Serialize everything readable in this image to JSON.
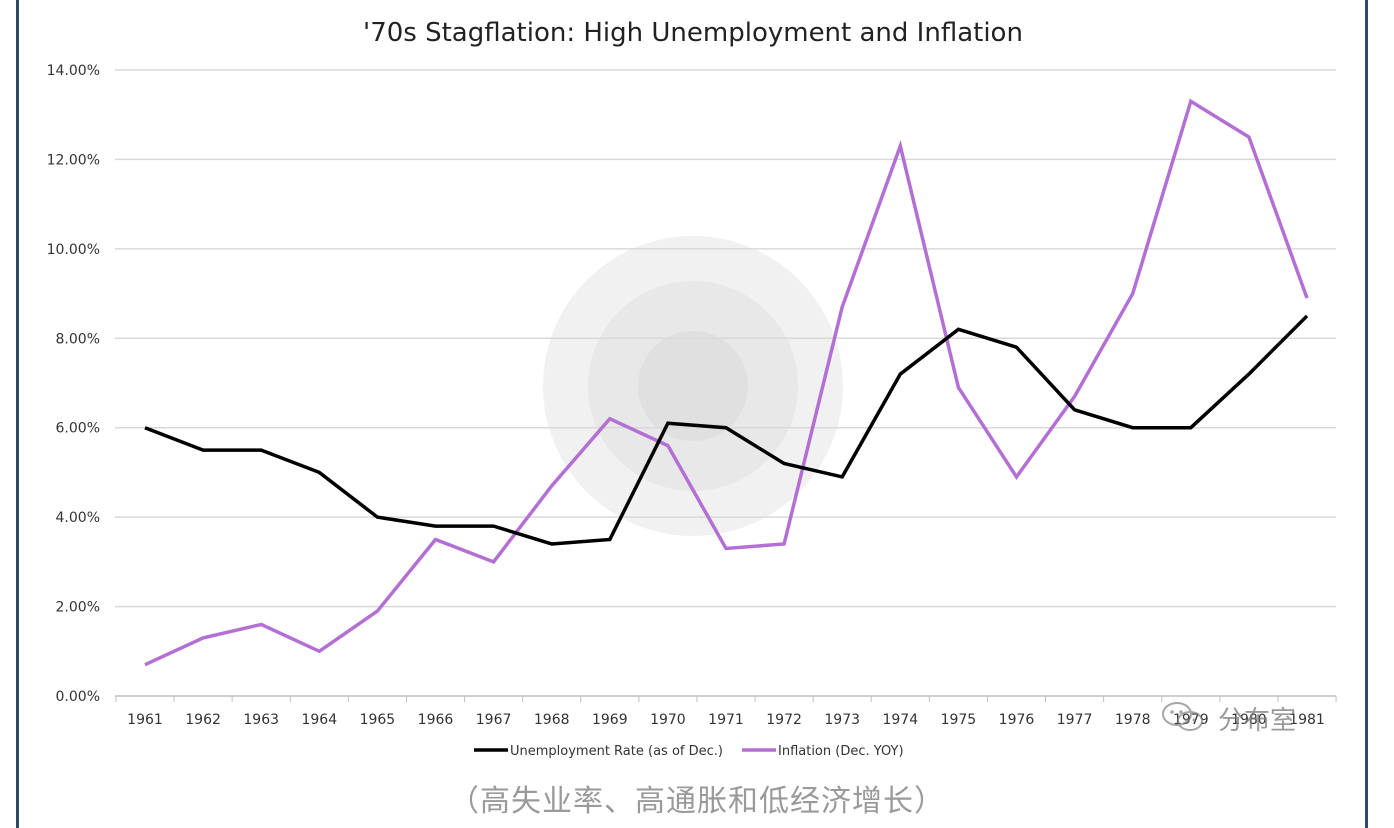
{
  "caption": "（高失业率、高通胀和低经济增长）",
  "watermark": {
    "text": "分布室",
    "icon": "wechat-icon"
  },
  "colors": {
    "unemployment": "#000000",
    "inflation": "#b36fd4",
    "grid": "#d9d9d9",
    "axis_text": "#333333",
    "frame": "#2e4a63"
  },
  "chart_data": {
    "type": "line",
    "title": "'70s Stagflation: High Unemployment and Inflation",
    "xlabel": "",
    "ylabel": "",
    "ylim": [
      0,
      14
    ],
    "grid": true,
    "legend_position": "bottom",
    "x_tick_labels": [
      "1961",
      "1962",
      "1963",
      "1964",
      "1965",
      "1966",
      "1967",
      "1968",
      "1969",
      "1970",
      "1971",
      "1972",
      "1973",
      "1974",
      "1975",
      "1976",
      "1977",
      "1978",
      "1979",
      "1980",
      "1981"
    ],
    "y_tick_labels": [
      "0.00%",
      "2.00%",
      "4.00%",
      "6.00%",
      "8.00%",
      "10.00%",
      "12.00%",
      "14.00%"
    ],
    "y_ticks": [
      0,
      2,
      4,
      6,
      8,
      10,
      12,
      14
    ],
    "series": [
      {
        "name": "Unemployment Rate (as of Dec.)",
        "values": [
          6.0,
          5.5,
          5.5,
          5.0,
          4.0,
          3.8,
          3.8,
          3.4,
          3.5,
          6.1,
          6.0,
          5.2,
          4.9,
          7.2,
          8.2,
          7.8,
          6.4,
          6.0,
          6.0,
          7.2,
          8.5
        ]
      },
      {
        "name": "Inflation (Dec. YOY)",
        "values": [
          0.7,
          1.3,
          1.6,
          1.0,
          1.9,
          3.5,
          3.0,
          4.7,
          6.2,
          5.6,
          3.3,
          3.4,
          8.7,
          12.3,
          6.9,
          4.9,
          6.7,
          9.0,
          13.3,
          12.5,
          8.9
        ]
      }
    ]
  }
}
